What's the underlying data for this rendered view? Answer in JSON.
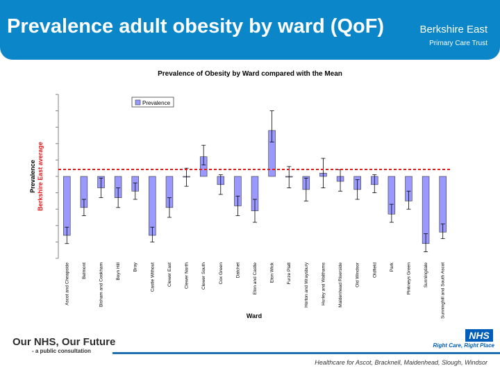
{
  "header": {
    "title": "Prevalence adult obesity by ward (QoF)",
    "org_name": "Berkshire East",
    "org_sub": "Primary Care Trust"
  },
  "chart_data": {
    "type": "bar",
    "title": "Prevalence of Obesity by Ward compared with the Mean",
    "xlabel": "Ward",
    "ylabel": "Prevalence",
    "ylabel_secondary": "Berkshire East average",
    "legend": [
      "Prevalence"
    ],
    "legend_position": "top-center",
    "baseline": 0,
    "categories": [
      "Ascot and Cheapside",
      "Belmont",
      "Bisham and Cookham",
      "Boyn Hill",
      "Bray",
      "Castle Without",
      "Clewer East",
      "Clewer North",
      "Clewer South",
      "Cox Green",
      "Datchet",
      "Eton and Castle",
      "Eton Wick",
      "Furze Platt",
      "Horton and Wraysbury",
      "Hurley and Walthams",
      "Maidenhead Riverside",
      "Old Windsor",
      "Oldfield",
      "Park",
      "Pinkneys Green",
      "Sunningdale",
      "Sunninghill and South Ascot"
    ],
    "values": [
      -3.6,
      -1.9,
      -0.7,
      -1.3,
      -0.9,
      -3.6,
      -1.9,
      0.0,
      1.2,
      -0.5,
      -1.8,
      -2.1,
      2.8,
      0.0,
      -0.8,
      0.2,
      -0.3,
      -0.8,
      -0.5,
      -2.3,
      -1.5,
      -4.1,
      -3.4
    ],
    "err_low": [
      -4.1,
      -2.4,
      -1.3,
      -1.9,
      -1.4,
      -4.0,
      -2.5,
      -0.6,
      0.7,
      -1.1,
      -2.4,
      -2.8,
      2.1,
      -0.7,
      -1.5,
      -0.7,
      -0.9,
      -1.4,
      -1.0,
      -2.8,
      -2.0,
      -4.6,
      -3.8
    ],
    "err_high": [
      -3.1,
      -1.4,
      -0.1,
      -0.7,
      -0.4,
      -3.1,
      -1.3,
      0.5,
      1.9,
      0.1,
      -1.2,
      -1.4,
      4.0,
      0.6,
      -0.1,
      1.1,
      0.4,
      -0.2,
      0.1,
      -1.7,
      -0.9,
      -3.5,
      -2.9
    ],
    "ylim": [
      -5,
      5
    ]
  },
  "footer": {
    "brand": "Our NHS, Our Future",
    "brand_sub": "- a public consultation",
    "nhs_logo": "NHS",
    "nhs_strap": "Right Care, Right Place",
    "caption": "Healthcare for Ascot, Bracknell, Maidenhead, Slough, Windsor"
  }
}
